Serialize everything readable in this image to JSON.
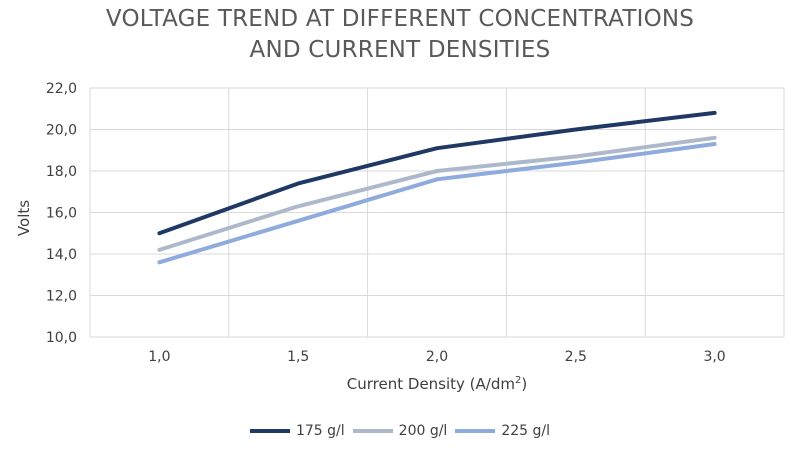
{
  "chart_data": {
    "type": "line",
    "title_lines": [
      "VOLTAGE TREND AT DIFFERENT CONCENTRATIONS",
      "AND CURRENT DENSITIES"
    ],
    "xlabel_main": "Current Density (A/dm",
    "xlabel_sup": "2",
    "xlabel_end": ")",
    "ylabel": "Volts",
    "categories": [
      "1,0",
      "1,5",
      "2,0",
      "2,5",
      "3,0"
    ],
    "y_ticks": [
      "10,0",
      "12,0",
      "14,0",
      "16,0",
      "18,0",
      "20,0",
      "22,0"
    ],
    "ylim": [
      10,
      22
    ],
    "grid": true,
    "legend_position": "bottom",
    "series": [
      {
        "name": "175 g/l",
        "color": "#203864",
        "values": [
          15.0,
          17.4,
          19.1,
          20.0,
          20.8
        ]
      },
      {
        "name": "200 g/l",
        "color": "#adb9ca",
        "values": [
          14.2,
          16.3,
          18.0,
          18.7,
          19.6
        ]
      },
      {
        "name": "225 g/l",
        "color": "#8faadc",
        "values": [
          13.6,
          15.6,
          17.6,
          18.4,
          19.3
        ]
      }
    ]
  }
}
